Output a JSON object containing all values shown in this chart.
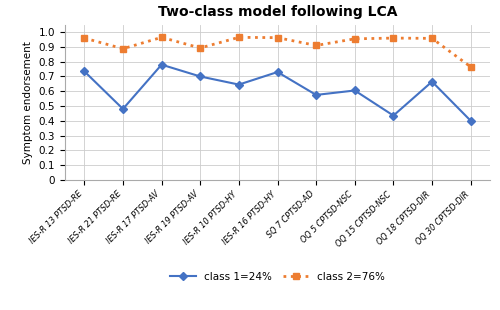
{
  "title": "Two-class model following LCA",
  "ylabel": "Symptom endorsement",
  "categories": [
    "IES-R 13 PTSD-RE",
    "IES-R 21 PTSD-RE",
    "IES-R 17 PTSD-AV",
    "IES-R 19 PTSD-AV",
    "IES-R 10 PTSD-HY",
    "IES-R 16 PTSD-HY",
    "SQ 7 CPTSD-AD",
    "OQ 5 CPTSD-NSC",
    "OQ 15 CPTSD-NSC",
    "OQ 18 CPTSD-DIR",
    "OQ 30 CPTSD-DIR"
  ],
  "class1_values": [
    0.735,
    0.48,
    0.78,
    0.7,
    0.645,
    0.73,
    0.575,
    0.605,
    0.435,
    0.665,
    0.4
  ],
  "class2_values": [
    0.96,
    0.888,
    0.965,
    0.893,
    0.965,
    0.963,
    0.91,
    0.955,
    0.96,
    0.958,
    0.765
  ],
  "class1_color": "#4472C4",
  "class2_color": "#ED7D31",
  "class1_label": "class 1=24%",
  "class2_label": "class 2=76%",
  "ylim": [
    0,
    1.05
  ],
  "yticks": [
    0,
    0.1,
    0.2,
    0.3,
    0.4,
    0.5,
    0.6,
    0.7,
    0.8,
    0.9,
    1
  ],
  "grid_color": "#CCCCCC",
  "bg_color": "#FFFFFF"
}
